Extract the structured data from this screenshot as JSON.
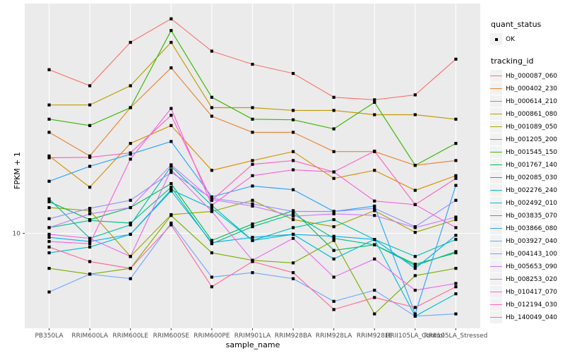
{
  "figure": {
    "background": "#FFFFFF",
    "panel_background": "#EBEBEB",
    "gridline_color": "#FFFFFF",
    "tick_color": "#333333",
    "tick_label_color": "#4D4D4D",
    "point_color": "#000000"
  },
  "axes": {
    "y_title": "FPKM + 1",
    "x_title": "sample_name",
    "y_tick_labels": [
      "10"
    ]
  },
  "legend": {
    "quant_status_title": "quant_status",
    "quant_status_items": [
      {
        "label": "OK",
        "shape": "black-square-point"
      }
    ],
    "tracking_id_title": "tracking_id",
    "key_background": "#F2F2F2"
  },
  "chart_data": {
    "type": "line",
    "title": "",
    "xlabel": "sample_name",
    "ylabel": "FPKM + 1",
    "y_scale": "log10",
    "ylim": [
      3.8,
      104
    ],
    "y_ticks": [
      10
    ],
    "grid": true,
    "legend_position": "right",
    "point_shape": "filled-square",
    "point_legend_label": "OK",
    "categories": [
      "PB350LA",
      "RRIM600LA",
      "RRIM600LE",
      "RRIM600SE",
      "RRIM600PE",
      "RRIM901LA",
      "RRIM928BA",
      "RRIM928LA",
      "RRIM928LE",
      "RRII105LA_Control",
      "RRII105LA_Stressed"
    ],
    "series": [
      {
        "name": "Hb_000087_060",
        "color": "#F8766D",
        "values": [
          53,
          45,
          70,
          89,
          64,
          56,
          51,
          40,
          39,
          41,
          59
        ]
      },
      {
        "name": "Hb_000402_230",
        "color": "#EA8331",
        "values": [
          28,
          22,
          36,
          54,
          33,
          28,
          28,
          23,
          23,
          20,
          21
        ]
      },
      {
        "name": "Hb_000614_210",
        "color": "#D89000",
        "values": [
          22,
          16,
          25,
          30,
          19,
          21,
          23,
          17.5,
          19,
          15.5,
          18
        ]
      },
      {
        "name": "Hb_000861_080",
        "color": "#C09B00",
        "values": [
          37,
          37,
          45,
          70,
          36,
          36,
          35,
          35,
          33.5,
          33.5,
          32
        ]
      },
      {
        "name": "Hb_001089_050",
        "color": "#A3A500",
        "values": [
          13,
          12.6,
          7.9,
          12.1,
          12.5,
          14,
          11.5,
          10.7,
          12.6,
          10.1,
          11.5
        ]
      },
      {
        "name": "Hb_001205_200",
        "color": "#7CAE00",
        "values": [
          7,
          6.6,
          7,
          12,
          8.2,
          7.6,
          7.4,
          9.3,
          4.4,
          6.5,
          7
        ]
      },
      {
        "name": "Hb_001545_150",
        "color": "#39B600",
        "values": [
          32,
          30,
          36,
          79,
          40,
          32,
          31.8,
          29,
          38,
          20,
          25
        ]
      },
      {
        "name": "Hb_001767_140",
        "color": "#00BB4E",
        "values": [
          13.8,
          11.5,
          13,
          16.6,
          9.3,
          11,
          12.6,
          8.4,
          8.9,
          7.3,
          8.2
        ]
      },
      {
        "name": "Hb_002085_030",
        "color": "#00C087",
        "values": [
          10.6,
          11.4,
          11.1,
          16,
          9,
          10.7,
          12.2,
          9.5,
          8.9,
          7.2,
          8.3
        ]
      },
      {
        "name": "Hb_002276_240",
        "color": "#00C0AF",
        "values": [
          14.2,
          9.5,
          10.9,
          19.8,
          13.3,
          9.3,
          10.6,
          11.5,
          9.4,
          7.9,
          9.4
        ]
      },
      {
        "name": "Hb_002492_010",
        "color": "#00BCD8",
        "values": [
          8.2,
          8.7,
          9.9,
          15.6,
          12.9,
          9.3,
          9.9,
          7.7,
          9.4,
          4.3,
          5.4
        ]
      },
      {
        "name": "Hb_003835_070",
        "color": "#00B0F6",
        "values": [
          9.6,
          9.2,
          9.9,
          15.4,
          9.1,
          9.6,
          9.9,
          9.7,
          9.4,
          7,
          9.8
        ]
      },
      {
        "name": "Hb_003866_080",
        "color": "#2CA3FF",
        "values": [
          17,
          19.8,
          22.4,
          25.5,
          14.5,
          16.2,
          15.6,
          12.5,
          13.2,
          4.4,
          16.3
        ]
      },
      {
        "name": "Hb_003927_040",
        "color": "#6FA8FF",
        "values": [
          5.5,
          6.6,
          6.3,
          11.1,
          6.4,
          6.7,
          6.3,
          5,
          5.6,
          4.3,
          4.4
        ]
      },
      {
        "name": "Hb_004143_100",
        "color": "#9590FF",
        "values": [
          11.6,
          12.9,
          14,
          18.6,
          14.3,
          13.5,
          12.5,
          12.5,
          12.9,
          10.7,
          14
        ]
      },
      {
        "name": "Hb_005653_090",
        "color": "#C77CFF",
        "values": [
          10.6,
          12.2,
          13,
          20.1,
          14.1,
          13.2,
          11.9,
          12.2,
          12,
          10.6,
          11.8
        ]
      },
      {
        "name": "Hb_008253_020",
        "color": "#E76BF3",
        "values": [
          9.9,
          9.5,
          7.9,
          19.1,
          12.5,
          7.6,
          9.5,
          6.4,
          7.7,
          5.6,
          6
        ]
      },
      {
        "name": "Hb_010417_070",
        "color": "#FA62DB",
        "values": [
          9.2,
          9,
          21.3,
          35.7,
          13.3,
          18,
          19.1,
          18.7,
          13.9,
          13.4,
          10.6
        ]
      },
      {
        "name": "Hb_012194_030",
        "color": "#FF61C2",
        "values": [
          21.6,
          21.7,
          22.7,
          33.3,
          14,
          20.2,
          21,
          18.7,
          23.1,
          13.4,
          17.5
        ]
      },
      {
        "name": "Hb_140049_040",
        "color": "#FF6A98",
        "values": [
          8.7,
          7.5,
          7,
          10.9,
          5.8,
          7.5,
          6.7,
          4.6,
          5.2,
          4.7,
          5.8
        ]
      }
    ]
  }
}
